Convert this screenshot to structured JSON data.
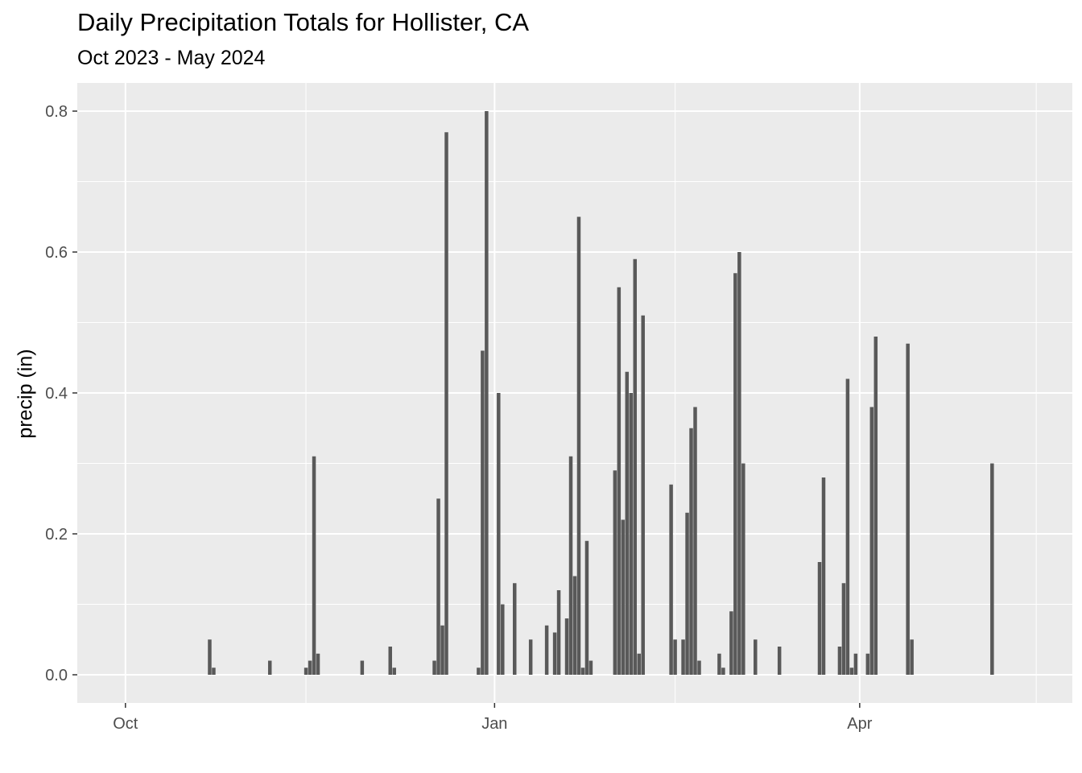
{
  "chart_data": {
    "type": "bar",
    "title": "Daily Precipitation Totals for Hollister, CA",
    "subtitle": "Oct 2023 - May 2024",
    "xlabel": "",
    "ylabel": "precip (in)",
    "ylim": [
      -0.04,
      0.84
    ],
    "xlim": [
      "2023-09-19",
      "2024-05-24"
    ],
    "yticks": [
      0.0,
      0.2,
      0.4,
      0.6,
      0.8
    ],
    "ytick_labels": [
      "0.0",
      "0.2",
      "0.4",
      "0.6",
      "0.8"
    ],
    "xticks": [
      "2023-10-01",
      "2024-01-01",
      "2024-04-01"
    ],
    "xtick_labels": [
      "Oct",
      "Jan",
      "Apr"
    ],
    "x_minor_breaks": [
      "2023-11-15",
      "2024-02-15",
      "2024-05-15"
    ],
    "grid": true,
    "panel_background": "#ebebeb",
    "bar_color": "#595959",
    "points": [
      {
        "x": "2023-10-22",
        "y": 0.05
      },
      {
        "x": "2023-10-23",
        "y": 0.01
      },
      {
        "x": "2023-11-06",
        "y": 0.02
      },
      {
        "x": "2023-11-15",
        "y": 0.01
      },
      {
        "x": "2023-11-16",
        "y": 0.02
      },
      {
        "x": "2023-11-17",
        "y": 0.31
      },
      {
        "x": "2023-11-18",
        "y": 0.03
      },
      {
        "x": "2023-11-29",
        "y": 0.02
      },
      {
        "x": "2023-12-06",
        "y": 0.04
      },
      {
        "x": "2023-12-07",
        "y": 0.01
      },
      {
        "x": "2023-12-17",
        "y": 0.02
      },
      {
        "x": "2023-12-18",
        "y": 0.25
      },
      {
        "x": "2023-12-19",
        "y": 0.07
      },
      {
        "x": "2023-12-20",
        "y": 0.77
      },
      {
        "x": "2023-12-28",
        "y": 0.01
      },
      {
        "x": "2023-12-29",
        "y": 0.46
      },
      {
        "x": "2023-12-30",
        "y": 0.8
      },
      {
        "x": "2024-01-02",
        "y": 0.4
      },
      {
        "x": "2024-01-03",
        "y": 0.1
      },
      {
        "x": "2024-01-06",
        "y": 0.13
      },
      {
        "x": "2024-01-10",
        "y": 0.05
      },
      {
        "x": "2024-01-14",
        "y": 0.07
      },
      {
        "x": "2024-01-16",
        "y": 0.06
      },
      {
        "x": "2024-01-17",
        "y": 0.12
      },
      {
        "x": "2024-01-19",
        "y": 0.08
      },
      {
        "x": "2024-01-20",
        "y": 0.31
      },
      {
        "x": "2024-01-21",
        "y": 0.14
      },
      {
        "x": "2024-01-22",
        "y": 0.65
      },
      {
        "x": "2024-01-23",
        "y": 0.01
      },
      {
        "x": "2024-01-24",
        "y": 0.19
      },
      {
        "x": "2024-01-25",
        "y": 0.02
      },
      {
        "x": "2024-01-31",
        "y": 0.29
      },
      {
        "x": "2024-02-01",
        "y": 0.55
      },
      {
        "x": "2024-02-02",
        "y": 0.22
      },
      {
        "x": "2024-02-03",
        "y": 0.43
      },
      {
        "x": "2024-02-04",
        "y": 0.4
      },
      {
        "x": "2024-02-05",
        "y": 0.59
      },
      {
        "x": "2024-02-06",
        "y": 0.03
      },
      {
        "x": "2024-02-07",
        "y": 0.51
      },
      {
        "x": "2024-02-14",
        "y": 0.27
      },
      {
        "x": "2024-02-15",
        "y": 0.05
      },
      {
        "x": "2024-02-17",
        "y": 0.05
      },
      {
        "x": "2024-02-18",
        "y": 0.23
      },
      {
        "x": "2024-02-19",
        "y": 0.35
      },
      {
        "x": "2024-02-20",
        "y": 0.38
      },
      {
        "x": "2024-02-21",
        "y": 0.02
      },
      {
        "x": "2024-02-26",
        "y": 0.03
      },
      {
        "x": "2024-02-27",
        "y": 0.01
      },
      {
        "x": "2024-02-29",
        "y": 0.09
      },
      {
        "x": "2024-03-01",
        "y": 0.57
      },
      {
        "x": "2024-03-02",
        "y": 0.6
      },
      {
        "x": "2024-03-03",
        "y": 0.3
      },
      {
        "x": "2024-03-06",
        "y": 0.05
      },
      {
        "x": "2024-03-12",
        "y": 0.04
      },
      {
        "x": "2024-03-22",
        "y": 0.16
      },
      {
        "x": "2024-03-23",
        "y": 0.28
      },
      {
        "x": "2024-03-27",
        "y": 0.04
      },
      {
        "x": "2024-03-28",
        "y": 0.13
      },
      {
        "x": "2024-03-29",
        "y": 0.42
      },
      {
        "x": "2024-03-30",
        "y": 0.01
      },
      {
        "x": "2024-03-31",
        "y": 0.03
      },
      {
        "x": "2024-04-03",
        "y": 0.03
      },
      {
        "x": "2024-04-04",
        "y": 0.38
      },
      {
        "x": "2024-04-05",
        "y": 0.48
      },
      {
        "x": "2024-04-13",
        "y": 0.47
      },
      {
        "x": "2024-04-14",
        "y": 0.05
      },
      {
        "x": "2024-05-04",
        "y": 0.3
      }
    ]
  }
}
